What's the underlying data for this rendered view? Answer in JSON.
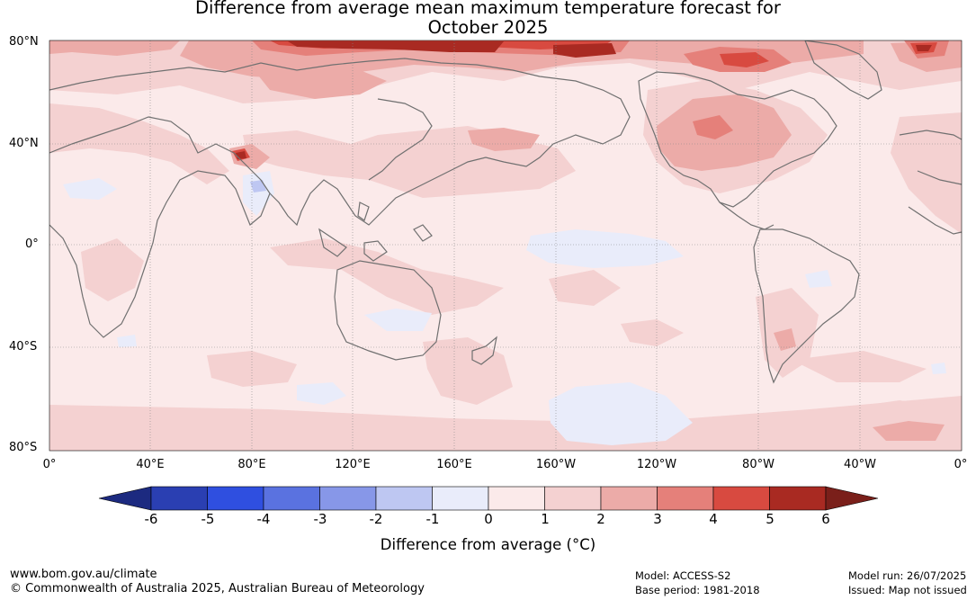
{
  "title": {
    "line1": "Difference from average mean maximum temperature forecast for",
    "line2": "October 2025"
  },
  "map": {
    "lat_labels": [
      "80°N",
      "40°N",
      "0°",
      "40°S",
      "80°S"
    ],
    "lon_labels": [
      "0°",
      "40°E",
      "80°E",
      "120°E",
      "160°E",
      "160°W",
      "120°W",
      "80°W",
      "40°W",
      "0°"
    ],
    "background_color": "#fbeaea",
    "coast_color": "#707070"
  },
  "colorbar": {
    "title": "Difference from average (°C)",
    "ticks": [
      "-6",
      "-5",
      "-4",
      "-3",
      "-2",
      "-1",
      "0",
      "1",
      "2",
      "3",
      "4",
      "5",
      "6"
    ],
    "colors": [
      "#1c2a80",
      "#2a3fb2",
      "#2f4fe0",
      "#5a72e0",
      "#8797e8",
      "#bec7f2",
      "#e9ecfa",
      "#fbeaea",
      "#f4d1d1",
      "#ecaba8",
      "#e5807a",
      "#d84a40",
      "#a92a22",
      "#7a1f1a"
    ]
  },
  "footer": {
    "website": "www.bom.gov.au/climate",
    "copyright": "© Commonwealth of Australia 2025, Australian Bureau of Meteorology",
    "model": "Model: ACCESS-S2",
    "base_period": "Base period: 1981-2018",
    "model_run": "Model run: 26/07/2025",
    "issued": "Issued: Map not issued"
  }
}
